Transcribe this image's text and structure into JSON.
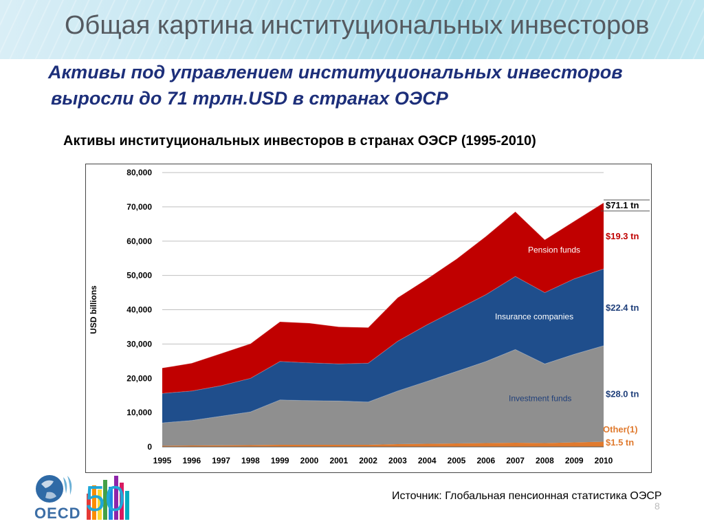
{
  "slide": {
    "title": "Общая картина институциональных инвесторов",
    "subtitle_line1": "Активы под управлением институциональных инвесторов",
    "subtitle_line2": "выросли до 71 трлн.USD в странах ОЭСР",
    "chart_caption": "Активы институциональных инвесторов в странах ОЭСР (1995-2010)",
    "source_note": "Источник: Глобальная пенсионная статистика ОЭСР",
    "page_number": "8",
    "logo_text": "OECD",
    "logo_fifty": "50"
  },
  "colors": {
    "pension": "#c00000",
    "insurance": "#1f4e8c",
    "investment": "#8f8f8f",
    "other": "#e07a2e",
    "grid": "#bfbfbf",
    "series_label_dark": "#1f3f7a",
    "pension_value": "#c00000",
    "other_value": "#e07a2e"
  },
  "chart_data": {
    "type": "area",
    "stacked": true,
    "ylabel": "USD billions",
    "ylim": [
      0,
      80000
    ],
    "yticks": [
      "0",
      "10,000",
      "20,000",
      "30,000",
      "40,000",
      "50,000",
      "60,000",
      "70,000",
      "80,000"
    ],
    "grid": true,
    "x": [
      "1995",
      "1996",
      "1997",
      "1998",
      "1999",
      "2000",
      "2001",
      "2002",
      "2003",
      "2004",
      "2005",
      "2006",
      "2007",
      "2008",
      "2009",
      "2010"
    ],
    "series": [
      {
        "name": "Other(1)",
        "values": [
          300,
          400,
          450,
          500,
          600,
          600,
          600,
          600,
          800,
          900,
          1000,
          1100,
          1200,
          1100,
          1300,
          1500
        ]
      },
      {
        "name": "Investment funds",
        "values": [
          6700,
          7300,
          8500,
          9700,
          13100,
          12900,
          12800,
          12500,
          15500,
          18200,
          21000,
          23800,
          27200,
          23100,
          25700,
          28000
        ]
      },
      {
        "name": "Insurance companies",
        "values": [
          8600,
          8600,
          8900,
          9800,
          11200,
          11000,
          10800,
          11300,
          14500,
          16500,
          18000,
          19500,
          21300,
          20800,
          22000,
          22400
        ]
      },
      {
        "name": "Pension funds",
        "values": [
          7400,
          8100,
          9400,
          10100,
          11600,
          11600,
          10800,
          10400,
          12700,
          13400,
          14800,
          17000,
          18900,
          15400,
          16800,
          19300
        ]
      }
    ],
    "annotations": {
      "total": "$71.1 tn",
      "pension": "$19.3 tn",
      "insurance": "$22.4 tn",
      "investment": "$28.0 tn",
      "other_label": "Other(1)",
      "other": "$1.5 tn"
    }
  }
}
